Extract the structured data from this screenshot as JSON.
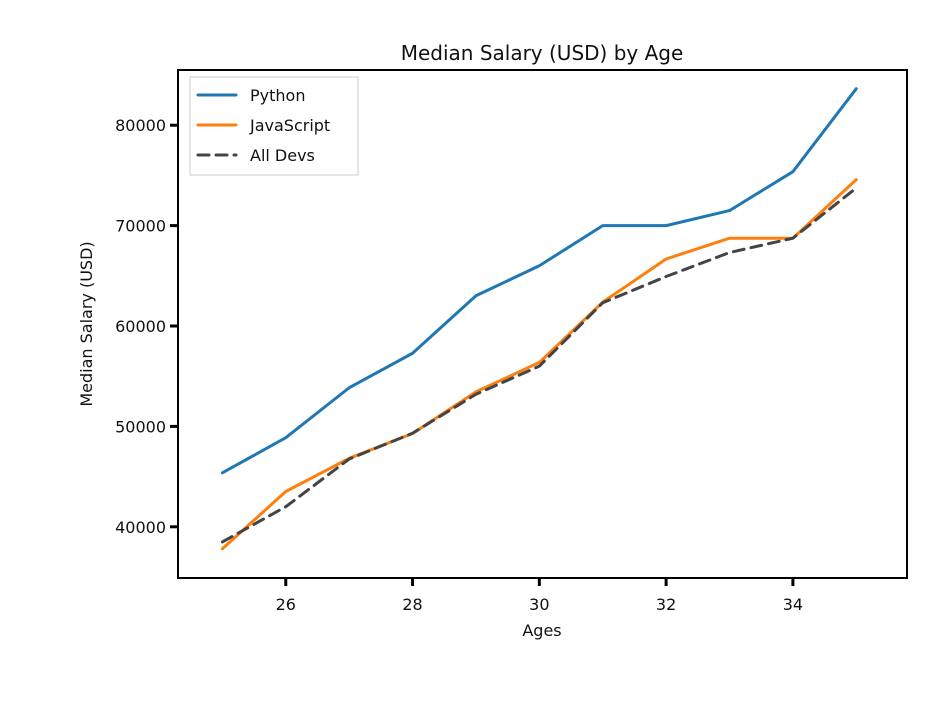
{
  "chart_data": {
    "type": "line",
    "title": "Median Salary (USD) by Age",
    "xlabel": "Ages",
    "ylabel": "Median Salary (USD)",
    "x": [
      25,
      26,
      27,
      28,
      29,
      30,
      31,
      32,
      33,
      34,
      35
    ],
    "xlim": [
      24.3,
      35.8
    ],
    "ylim": [
      34900,
      85500
    ],
    "xticks": [
      26,
      28,
      30,
      32,
      34
    ],
    "yticks": [
      40000,
      50000,
      60000,
      70000,
      80000
    ],
    "xtick_labels": [
      "26",
      "28",
      "30",
      "32",
      "34"
    ],
    "ytick_labels": [
      "40000",
      "50000",
      "60000",
      "70000",
      "80000"
    ],
    "grid": false,
    "legend_position": "top-left",
    "series": [
      {
        "name": "Python",
        "color": "#1f77b4",
        "dash": "solid",
        "values": [
          45372,
          48876,
          53850,
          57287,
          63016,
          65998,
          70003,
          70000,
          71496,
          75370,
          83640
        ]
      },
      {
        "name": "JavaScript",
        "color": "#ff7f0e",
        "dash": "solid",
        "values": [
          37810,
          43515,
          46823,
          49293,
          53437,
          56373,
          62375,
          66674,
          68745,
          68746,
          74583
        ]
      },
      {
        "name": "All Devs",
        "color": "#444444",
        "dash": "dashed",
        "values": [
          38496,
          42000,
          46752,
          49320,
          53200,
          56000,
          62316,
          64928,
          67317,
          68748,
          73752
        ]
      }
    ]
  }
}
